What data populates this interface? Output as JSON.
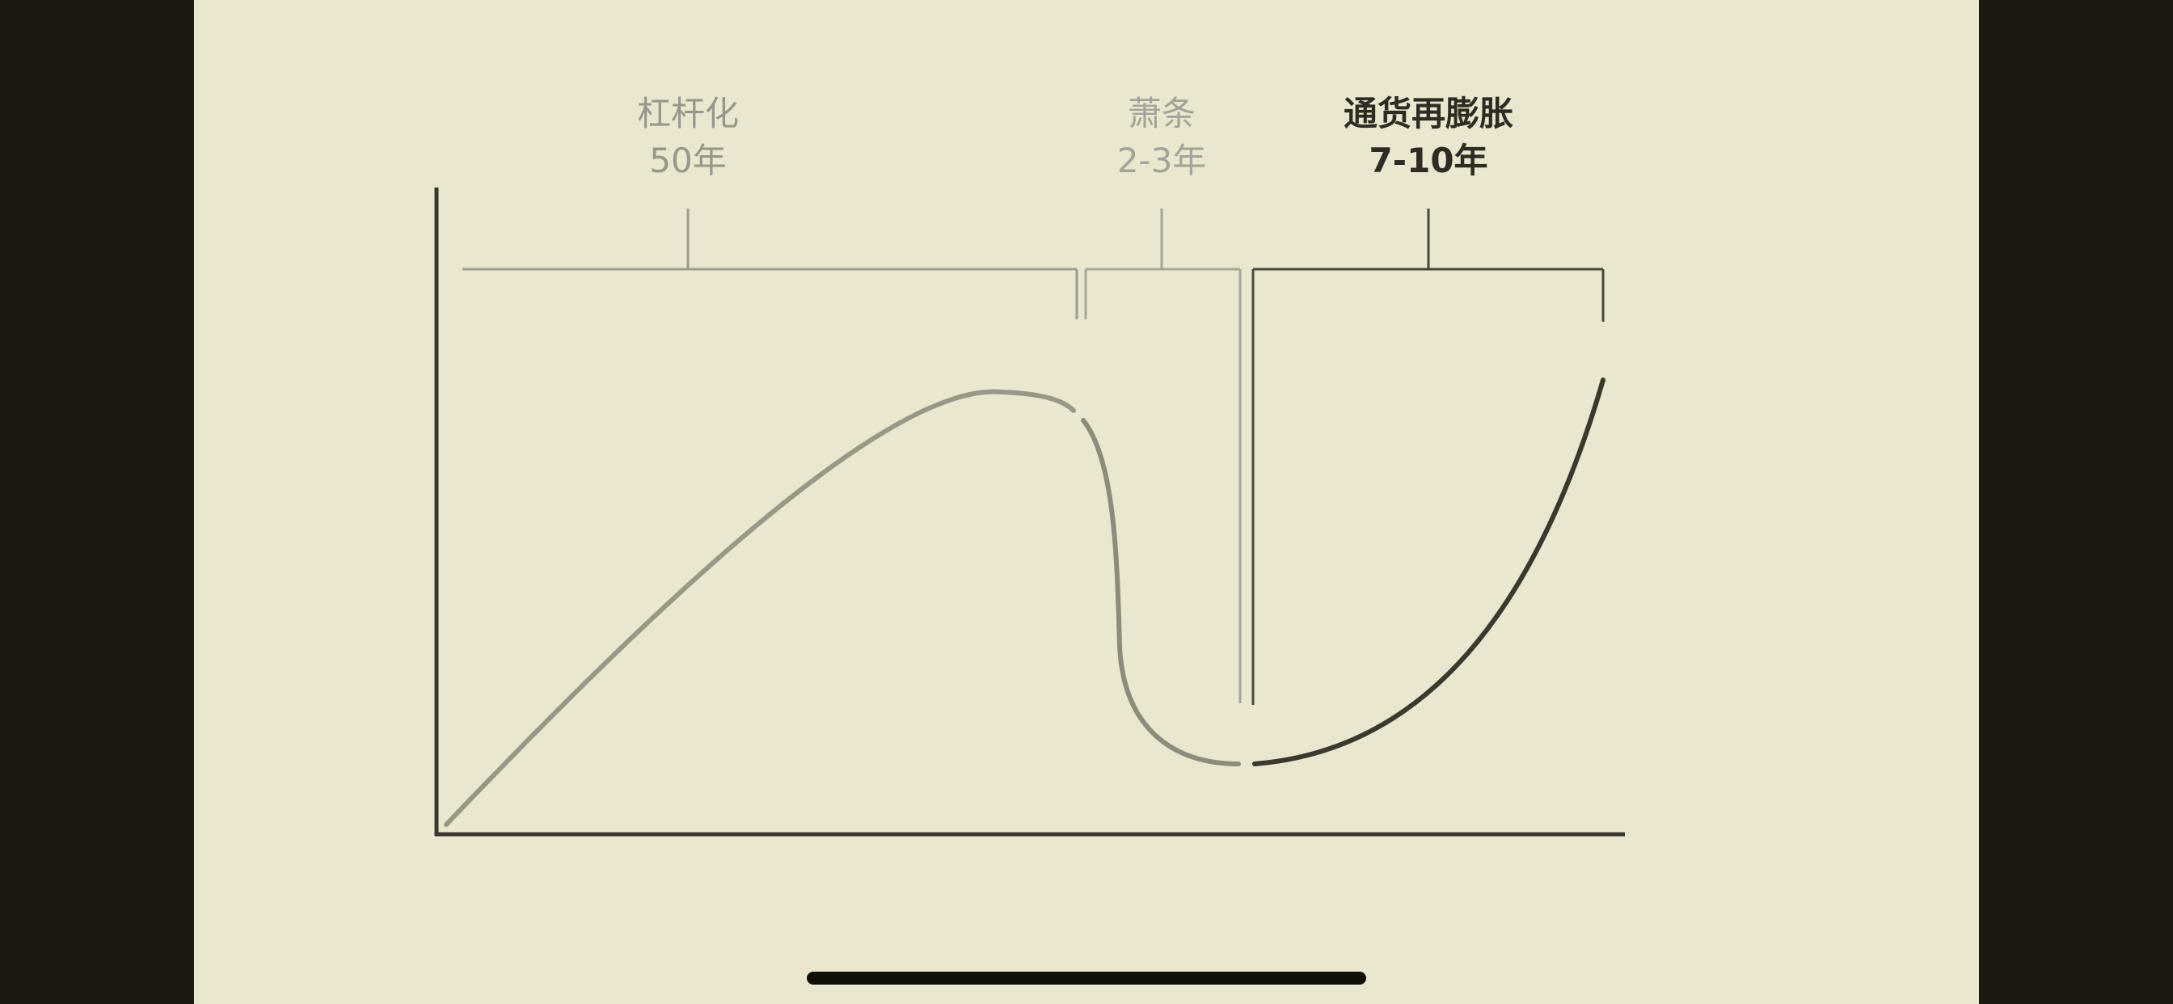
{
  "diagram": {
    "phases": [
      {
        "name": "杠杆化",
        "duration": "50年",
        "color": "#9a968a"
      },
      {
        "name": "萧条",
        "duration": "2-3年",
        "color": "#a5a297"
      },
      {
        "name": "通货再膨胀",
        "duration": "7-10年",
        "color": "#2e2b22"
      }
    ],
    "axis_color": "#3a372c",
    "curve_colors": [
      "#9b9786",
      "#8f8b7c",
      "#3b382c"
    ]
  },
  "background_color": "#ebe6cf",
  "letterbox_color": "#1c1a10"
}
